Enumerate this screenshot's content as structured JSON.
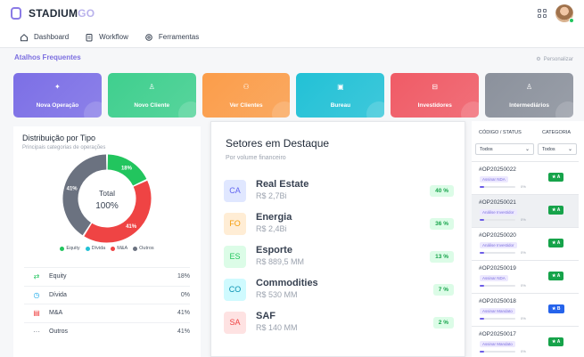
{
  "header": {
    "brand_main": "STADIUM",
    "brand_suffix": "GO"
  },
  "nav": {
    "items": [
      {
        "label": "Dashboard",
        "icon": "home-icon"
      },
      {
        "label": "Workflow",
        "icon": "clipboard-icon"
      },
      {
        "label": "Ferramentas",
        "icon": "gear-icon"
      }
    ]
  },
  "shortcuts": {
    "title": "Atalhos Frequentes",
    "personalize_label": "Personalizar",
    "cards": [
      {
        "label": "Nova Operação",
        "icon": "sparkle-icon",
        "color": "#7c6fe6"
      },
      {
        "label": "Novo Cliente",
        "icon": "user-icon",
        "color": "#3fcf8e"
      },
      {
        "label": "Ver Clientes",
        "icon": "users-icon",
        "color": "#fb9d4a"
      },
      {
        "label": "Bureau",
        "icon": "id-card-icon",
        "color": "#22c1d6"
      },
      {
        "label": "Investidores",
        "icon": "briefcase-icon",
        "color": "#f05b66"
      },
      {
        "label": "Intermediários",
        "icon": "user-icon",
        "color": "#8b919c"
      }
    ]
  },
  "distribution": {
    "title": "Distribuição por Tipo",
    "subtitle": "Principais categorias de operações",
    "center_label": "Total",
    "center_value": "100%",
    "colors": {
      "Equity": "#22c55e",
      "Dívida": "#22c1d6",
      "M&A": "#ef4444",
      "Outros": "#6b7280"
    },
    "segments": [
      {
        "name": "Equity",
        "value": 18,
        "label": "18%"
      },
      {
        "name": "Dívida",
        "value": 0,
        "label": ""
      },
      {
        "name": "M&A",
        "value": 41,
        "label": "41%"
      },
      {
        "name": "Outros",
        "value": 41,
        "label": "41%"
      }
    ],
    "legend": [
      "Equity",
      "Dívida",
      "M&A",
      "Outros"
    ],
    "rows": [
      {
        "label": "Equity",
        "value": "18%",
        "icon": "arrows-icon"
      },
      {
        "label": "Dívida",
        "value": "0%",
        "icon": "clock-icon"
      },
      {
        "label": "M&A",
        "value": "41%",
        "icon": "building-icon"
      },
      {
        "label": "Outros",
        "value": "41%",
        "icon": "dots-icon"
      }
    ]
  },
  "sectors": {
    "title": "Setores em Destaque",
    "subtitle": "Por volume financeiro",
    "items": [
      {
        "abbr": "CA",
        "name": "Real Estate",
        "value": "R$ 2,7Bi",
        "pct": "40 %",
        "bg": "#e0e7ff",
        "fg": "#6366f1"
      },
      {
        "abbr": "FO",
        "name": "Energia",
        "value": "R$ 2,4Bi",
        "pct": "36 %",
        "bg": "#ffedd5",
        "fg": "#f59e0b"
      },
      {
        "abbr": "ES",
        "name": "Esporte",
        "value": "R$ 889,5 MM",
        "pct": "13 %",
        "bg": "#dcfce7",
        "fg": "#22c55e"
      },
      {
        "abbr": "CO",
        "name": "Commodities",
        "value": "R$ 530 MM",
        "pct": "7 %",
        "bg": "#cffafe",
        "fg": "#0891b2"
      },
      {
        "abbr": "SA",
        "name": "SAF",
        "value": "R$ 140 MM",
        "pct": "2 %",
        "bg": "#fee2e2",
        "fg": "#ef4444"
      }
    ]
  },
  "operations": {
    "col_code": "CÓDIGO / STATUS",
    "col_category": "CATEGORIA",
    "filter_status": "Todos",
    "filter_category": "Todos",
    "rows": [
      {
        "id": "#OP20250022",
        "status": "Assinar NDA",
        "progress": "0%",
        "category": "A"
      },
      {
        "id": "#OP20250021",
        "status": "Análise Investidor",
        "progress": "0%",
        "category": "A"
      },
      {
        "id": "#OP20250020",
        "status": "Análise Investidor",
        "progress": "0%",
        "category": "A"
      },
      {
        "id": "#OP20250019",
        "status": "Assinar NDA",
        "progress": "0%",
        "category": "A"
      },
      {
        "id": "#OP20250018",
        "status": "Assinar Mandato",
        "progress": "0%",
        "category": "B"
      },
      {
        "id": "#OP20250017",
        "status": "Assinar Mandato",
        "progress": "0%",
        "category": "A"
      }
    ]
  }
}
